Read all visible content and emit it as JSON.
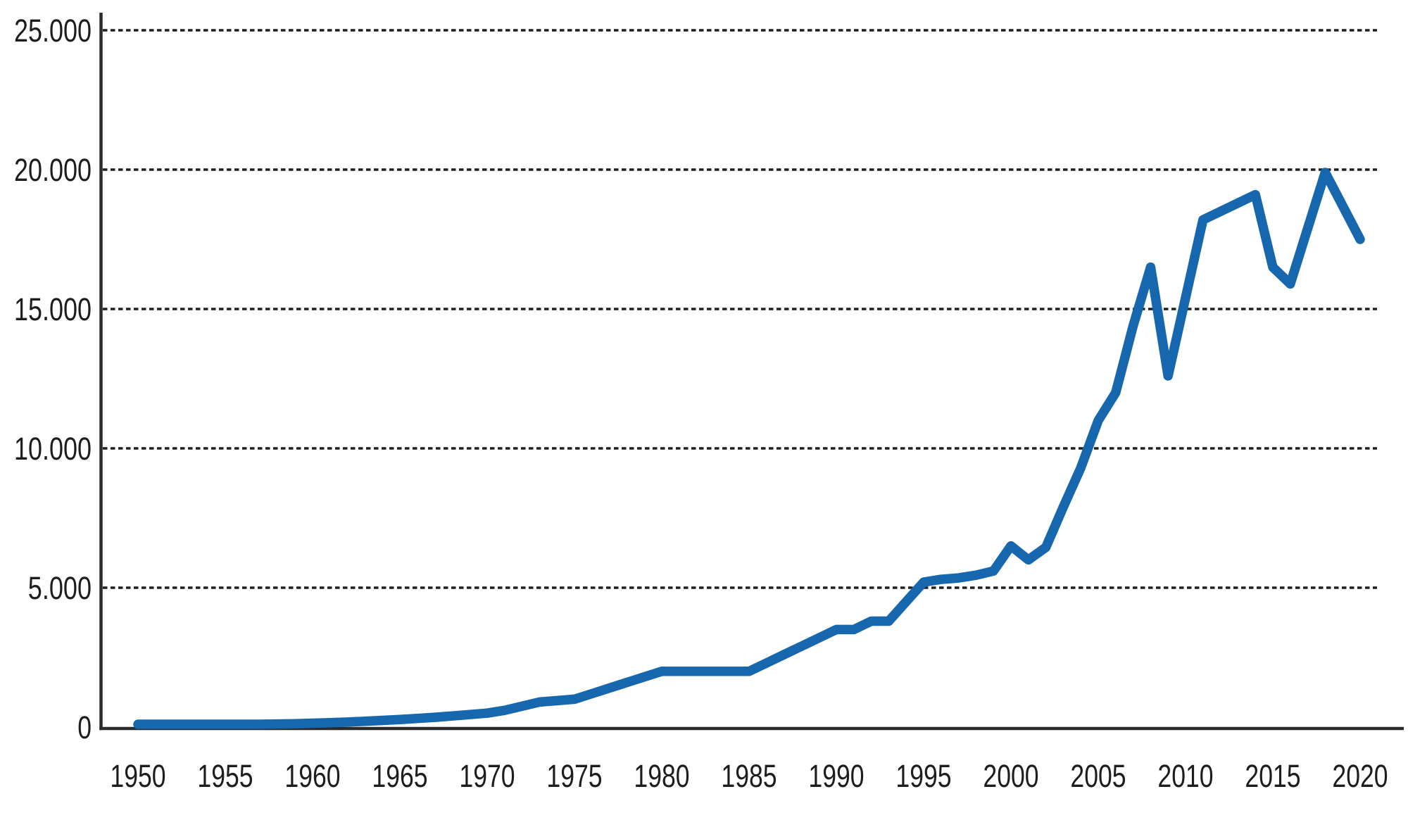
{
  "chart_data": {
    "type": "line",
    "title": "",
    "xlabel": "",
    "ylabel": "",
    "xlim": [
      1950,
      2020
    ],
    "ylim": [
      0,
      25000
    ],
    "grid": "horizontal-dashed",
    "legend": "none",
    "x_tick_years": [
      1950,
      1955,
      1960,
      1965,
      1970,
      1975,
      1980,
      1985,
      1990,
      1995,
      2000,
      2005,
      2010,
      2015,
      2020
    ],
    "x_tick_labels": [
      "1950",
      "1955",
      "1960",
      "1965",
      "1970",
      "1975",
      "1980",
      "1985",
      "1990",
      "1995",
      "2000",
      "2005",
      "2010",
      "2015",
      "2020"
    ],
    "y_tick_values": [
      0,
      5000,
      10000,
      15000,
      20000,
      25000
    ],
    "y_tick_labels": [
      "0",
      "5.000",
      "10.000",
      "15.000",
      "20.000",
      "25.000"
    ],
    "years": [
      1950,
      1951,
      1952,
      1953,
      1954,
      1955,
      1956,
      1957,
      1958,
      1959,
      1960,
      1961,
      1962,
      1963,
      1964,
      1965,
      1966,
      1967,
      1968,
      1969,
      1970,
      1971,
      1972,
      1973,
      1974,
      1975,
      1976,
      1977,
      1978,
      1979,
      1980,
      1981,
      1982,
      1983,
      1984,
      1985,
      1986,
      1987,
      1988,
      1989,
      1990,
      1991,
      1992,
      1993,
      1994,
      1995,
      1996,
      1997,
      1998,
      1999,
      2000,
      2001,
      2002,
      2003,
      2004,
      2005,
      2006,
      2007,
      2008,
      2009,
      2010,
      2011,
      2012,
      2013,
      2014,
      2015,
      2016,
      2017,
      2018,
      2019,
      2020
    ],
    "values": [
      100,
      100,
      100,
      100,
      100,
      100,
      100,
      100,
      110,
      120,
      140,
      160,
      180,
      210,
      240,
      270,
      310,
      350,
      400,
      450,
      500,
      600,
      750,
      900,
      950,
      1000,
      1200,
      1400,
      1600,
      1800,
      2000,
      2000,
      2000,
      2000,
      2000,
      2000,
      2300,
      2600,
      2900,
      3200,
      3500,
      3500,
      3800,
      3800,
      4500,
      5200,
      5300,
      5350,
      5450,
      5600,
      6500,
      6000,
      6450,
      7900,
      9300,
      11000,
      12000,
      14400,
      16500,
      12600,
      15400,
      18200,
      18500,
      18800,
      19100,
      16500,
      15900,
      17900,
      19900,
      18700,
      17500
    ],
    "colors": {
      "line": "#1667ad",
      "axis": "#2b2b2b",
      "grid": "#1f1f1f",
      "labels": "#1d1d1d",
      "background": "#ffffff"
    }
  }
}
